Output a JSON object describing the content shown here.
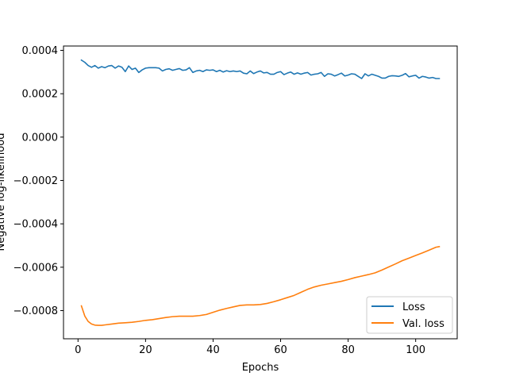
{
  "chart_data": {
    "type": "line",
    "xlabel": "Epochs",
    "ylabel": "Negative log-likelihood",
    "xlim": [
      -4.3,
      112.3
    ],
    "ylim": [
      -0.00093,
      0.00042
    ],
    "xticks": [
      0,
      20,
      40,
      60,
      80,
      100
    ],
    "yticks": [
      0.0004,
      0.0002,
      0.0,
      -0.0002,
      -0.0004,
      -0.0006,
      -0.0008
    ],
    "ytick_labels": [
      "0.0004",
      "0.0002",
      "0.0000",
      "−0.0002",
      "−0.0004",
      "−0.0006",
      "−0.0008"
    ],
    "grid": false,
    "legend_position": "lower-right",
    "series": [
      {
        "name": "Loss",
        "color": "#1f77b4",
        "x": [
          1,
          2,
          3,
          4,
          5,
          6,
          7,
          8,
          9,
          10,
          11,
          12,
          13,
          14,
          15,
          16,
          17,
          18,
          19,
          20,
          21,
          22,
          23,
          24,
          25,
          26,
          27,
          28,
          29,
          30,
          31,
          32,
          33,
          34,
          35,
          36,
          37,
          38,
          39,
          40,
          41,
          42,
          43,
          44,
          45,
          46,
          47,
          48,
          49,
          50,
          51,
          52,
          53,
          54,
          55,
          56,
          57,
          58,
          59,
          60,
          61,
          62,
          63,
          64,
          65,
          66,
          67,
          68,
          69,
          70,
          71,
          72,
          73,
          74,
          75,
          76,
          77,
          78,
          79,
          80,
          81,
          82,
          83,
          84,
          85,
          86,
          87,
          88,
          89,
          90,
          91,
          92,
          93,
          94,
          95,
          96,
          97,
          98,
          99,
          100,
          101,
          102,
          103,
          104,
          105,
          106,
          107
        ],
        "values": [
          0.000355,
          0.000345,
          0.00033,
          0.000322,
          0.00033,
          0.000318,
          0.000325,
          0.00032,
          0.000328,
          0.00033,
          0.000318,
          0.000328,
          0.000322,
          0.000302,
          0.000328,
          0.000312,
          0.000318,
          0.000298,
          0.00031,
          0.000318,
          0.00032,
          0.00032,
          0.00032,
          0.000318,
          0.000305,
          0.000312,
          0.000315,
          0.000308,
          0.000312,
          0.000316,
          0.000308,
          0.00031,
          0.00032,
          0.000298,
          0.000305,
          0.000308,
          0.000302,
          0.00031,
          0.000308,
          0.00031,
          0.000302,
          0.000308,
          0.0003,
          0.000306,
          0.000302,
          0.000305,
          0.000302,
          0.000305,
          0.000295,
          0.000292,
          0.000305,
          0.000293,
          0.0003,
          0.000305,
          0.000296,
          0.000298,
          0.00029,
          0.00029,
          0.000298,
          0.000302,
          0.000288,
          0.000295,
          0.0003,
          0.00029,
          0.000296,
          0.00029,
          0.000295,
          0.000298,
          0.000286,
          0.00029,
          0.000292,
          0.000298,
          0.00028,
          0.000292,
          0.00029,
          0.000282,
          0.000288,
          0.000295,
          0.000282,
          0.000286,
          0.000292,
          0.00029,
          0.00028,
          0.00027,
          0.000292,
          0.000282,
          0.00029,
          0.000285,
          0.00028,
          0.000272,
          0.000272,
          0.00028,
          0.000283,
          0.000282,
          0.00028,
          0.000285,
          0.000293,
          0.000278,
          0.000282,
          0.000285,
          0.000272,
          0.00028,
          0.000277,
          0.000272,
          0.000275,
          0.00027,
          0.00027
        ]
      },
      {
        "name": "Val. loss",
        "color": "#ff7f0e",
        "x": [
          1,
          2,
          3,
          4,
          5,
          6,
          7,
          8,
          10,
          12,
          14,
          16,
          18,
          20,
          22,
          24,
          26,
          28,
          30,
          32,
          34,
          36,
          38,
          40,
          42,
          44,
          46,
          48,
          50,
          52,
          54,
          56,
          58,
          60,
          62,
          64,
          66,
          68,
          70,
          72,
          74,
          76,
          78,
          80,
          82,
          84,
          86,
          88,
          90,
          92,
          94,
          96,
          98,
          100,
          102,
          104,
          106,
          107
        ],
        "values": [
          -0.000778,
          -0.000825,
          -0.00085,
          -0.000862,
          -0.000867,
          -0.000868,
          -0.000868,
          -0.000866,
          -0.000862,
          -0.000858,
          -0.000856,
          -0.000854,
          -0.00085,
          -0.000845,
          -0.000842,
          -0.000837,
          -0.000832,
          -0.000828,
          -0.000826,
          -0.000826,
          -0.000826,
          -0.000823,
          -0.000818,
          -0.000808,
          -0.000798,
          -0.00079,
          -0.000783,
          -0.000776,
          -0.000774,
          -0.000774,
          -0.000772,
          -0.000767,
          -0.000759,
          -0.00075,
          -0.00074,
          -0.00073,
          -0.000716,
          -0.000702,
          -0.000691,
          -0.000683,
          -0.000677,
          -0.000671,
          -0.000665,
          -0.000657,
          -0.000648,
          -0.000641,
          -0.000634,
          -0.000626,
          -0.000613,
          -0.000599,
          -0.000585,
          -0.00057,
          -0.000558,
          -0.000546,
          -0.000534,
          -0.000521,
          -0.000508,
          -0.000505
        ]
      }
    ]
  }
}
